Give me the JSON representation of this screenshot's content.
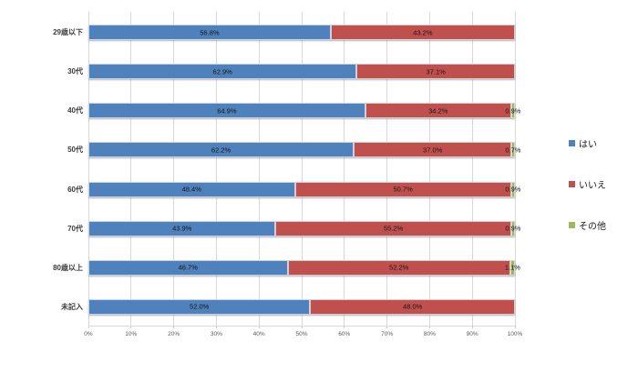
{
  "chart_data": {
    "type": "bar",
    "orientation": "horizontal",
    "stacked": true,
    "title": "",
    "xlabel": "",
    "ylabel": "",
    "categories": [
      "29歳以下",
      "30代",
      "40代",
      "50代",
      "60代",
      "70代",
      "80歳以上",
      "未記入"
    ],
    "series": [
      {
        "name": "はい",
        "color": "#4F81BD",
        "values": [
          56.8,
          62.9,
          64.9,
          62.2,
          48.4,
          43.9,
          46.7,
          52.0
        ]
      },
      {
        "name": "いいえ",
        "color": "#C0504D",
        "values": [
          43.2,
          37.1,
          34.2,
          37.0,
          50.7,
          55.2,
          52.2,
          48.0
        ]
      },
      {
        "name": "その他",
        "color": "#9BBB59",
        "values": [
          0,
          0,
          0.9,
          0.7,
          0.9,
          0.9,
          1.1,
          0
        ]
      }
    ],
    "data_labels": [
      [
        "56.8%",
        "43.2%",
        ""
      ],
      [
        "62.9%",
        "37.1%",
        ""
      ],
      [
        "64.9%",
        "34.2%",
        "0.9%"
      ],
      [
        "62.2%",
        "37.0%",
        "0.7%"
      ],
      [
        "48.4%",
        "50.7%",
        "0.9%"
      ],
      [
        "43.9%",
        "55.2%",
        "0.9%"
      ],
      [
        "46.7%",
        "52.2%",
        "1.1%"
      ],
      [
        "52.0%",
        "48.0%",
        ""
      ]
    ],
    "xlim": [
      0,
      100
    ],
    "x_tick_values": [
      0,
      10,
      20,
      30,
      40,
      50,
      60,
      70,
      80,
      90,
      100
    ],
    "x_tick_labels": [
      "0%",
      "10%",
      "20%",
      "30%",
      "40%",
      "50%",
      "60%",
      "70%",
      "80%",
      "90%",
      "100%"
    ],
    "grid": true,
    "legend_position": "right",
    "legend": [
      {
        "label": "はい",
        "color": "#4F81BD"
      },
      {
        "label": "いいえ",
        "color": "#C0504D"
      },
      {
        "label": "その他",
        "color": "#9BBB59"
      }
    ],
    "colors": {
      "gridline": "#d9d9d9",
      "tick_text": "#595959",
      "category_text": "#3d3d3d",
      "data_label_text": "#151515"
    }
  }
}
